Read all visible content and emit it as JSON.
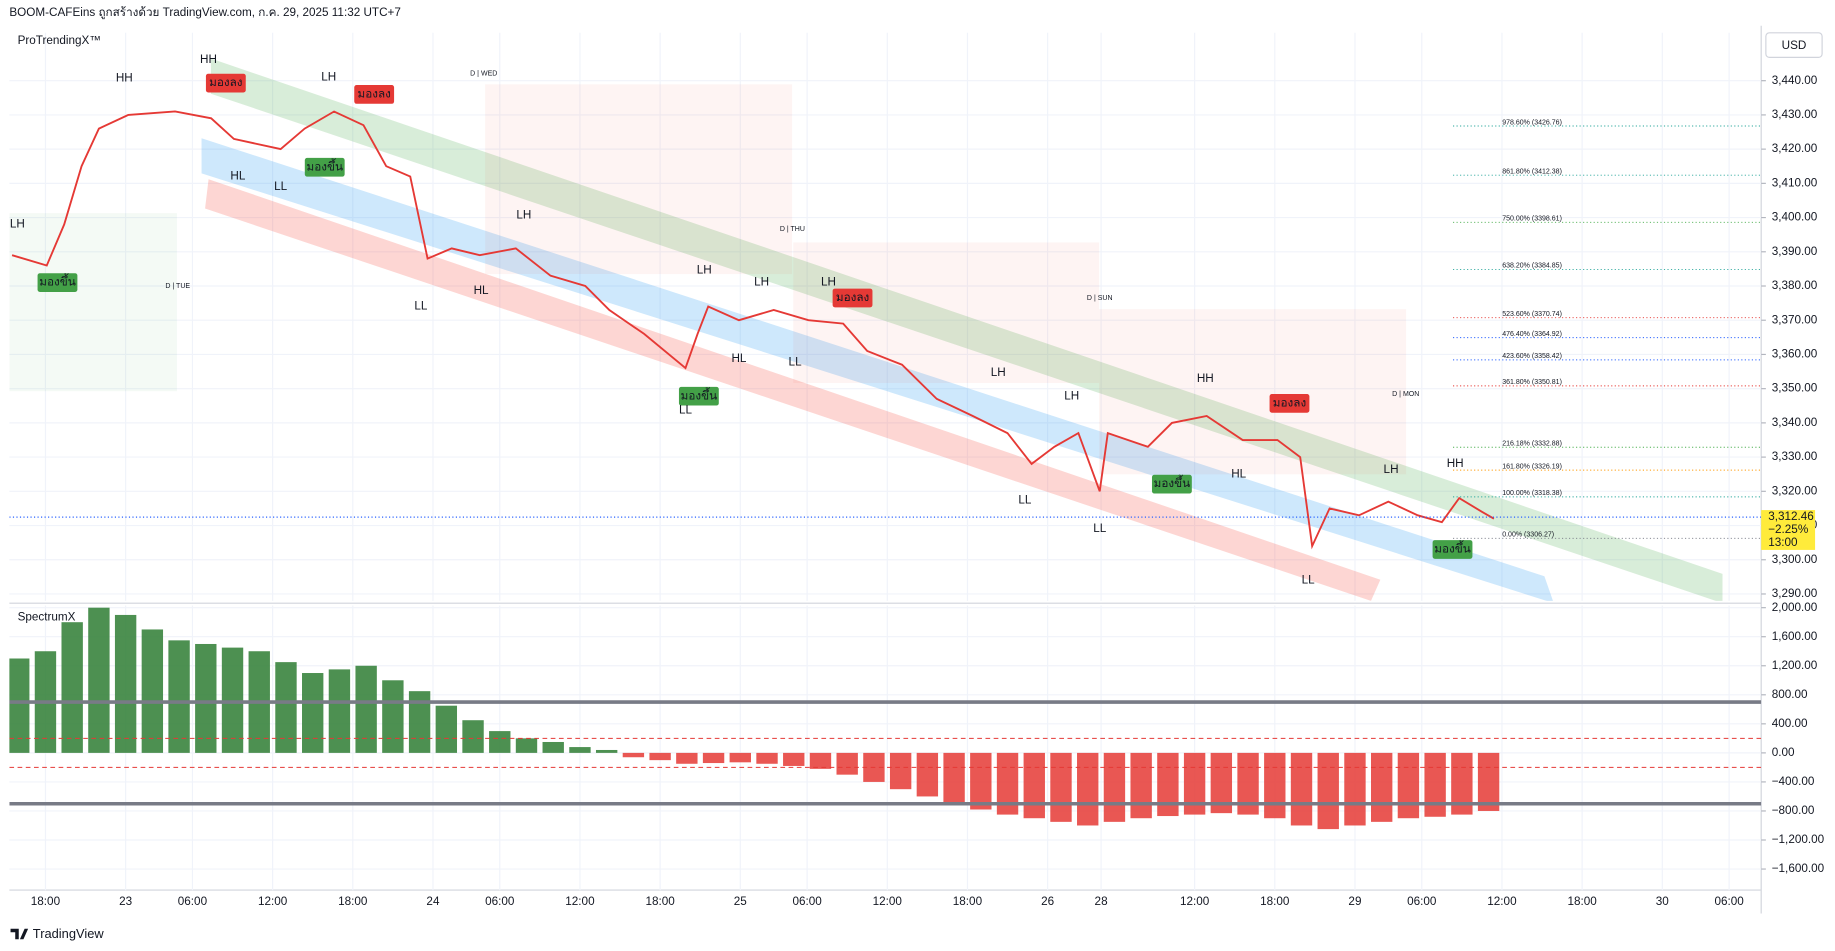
{
  "header": {
    "title": "BOOM-CAFEins ถูกสร้างด้วย TradingView.com, ก.ค. 29, 2025 11:32 UTC+7"
  },
  "footer": {
    "brand": "TradingView"
  },
  "chart_data": [
    {
      "type": "line",
      "title": "ProTrendingX™",
      "currency": "USD",
      "color": "#e53935",
      "grid": true,
      "x": [
        -2.5,
        0.1,
        1.4,
        2.7,
        4.0,
        6.2,
        9.7,
        12.4,
        14.1,
        17.6,
        19.4,
        21.6,
        23.8,
        25.5,
        27.3,
        28.6,
        30.4,
        32.5,
        35.2,
        37.8,
        40.4,
        42.2,
        44.8,
        47.9,
        48.8,
        49.6,
        51.9,
        54.5,
        57.1,
        59.7,
        61.5,
        64.1,
        66.7,
        69.4,
        72.0,
        73.8,
        75.5,
        77.3,
        78.9,
        79.5,
        82.5,
        84.3,
        86.9,
        89.6,
        92.2,
        93.9,
        94.8,
        96.1,
        98.3,
        100.5,
        102.7,
        104.5,
        105.8,
        107.5,
        108.4
      ],
      "values": [
        3389,
        3386,
        3398,
        3415,
        3426,
        3430,
        3431,
        3429,
        3423,
        3420,
        3426,
        3431,
        3427,
        3415,
        3412,
        3388,
        3391,
        3389,
        3391,
        3383,
        3380,
        3373,
        3366,
        3356,
        3366,
        3374,
        3370,
        3373,
        3370,
        3369,
        3361,
        3357,
        3347,
        3342,
        3337,
        3328,
        3333,
        3337,
        3320,
        3337,
        3333,
        3340,
        3342,
        3335,
        3335,
        3330,
        3304,
        3315,
        3313,
        3317,
        3313,
        3311,
        3318,
        3314,
        3312
      ],
      "xlim": [
        -2.7,
        128.4
      ],
      "xticks": [
        {
          "value": 0,
          "label": "18:00"
        },
        {
          "value": 6,
          "label": "23"
        },
        {
          "value": 11,
          "label": "06:00"
        },
        {
          "value": 17,
          "label": "12:00"
        },
        {
          "value": 23,
          "label": "18:00"
        },
        {
          "value": 29,
          "label": "24"
        },
        {
          "value": 34,
          "label": "06:00"
        },
        {
          "value": 40,
          "label": "12:00"
        },
        {
          "value": 46,
          "label": "18:00"
        },
        {
          "value": 52,
          "label": "25"
        },
        {
          "value": 57,
          "label": "06:00"
        },
        {
          "value": 63,
          "label": "12:00"
        },
        {
          "value": 69,
          "label": "18:00"
        },
        {
          "value": 75,
          "label": "26"
        },
        {
          "value": 79,
          "label": "28"
        },
        {
          "value": 86,
          "label": "12:00"
        },
        {
          "value": 92,
          "label": "18:00"
        },
        {
          "value": 98,
          "label": "29"
        },
        {
          "value": 103,
          "label": "06:00"
        },
        {
          "value": 109,
          "label": "12:00"
        },
        {
          "value": 115,
          "label": "18:00"
        },
        {
          "value": 121,
          "label": "30"
        },
        {
          "value": 126,
          "label": "06:00"
        }
      ],
      "ylim": [
        3288,
        3454
      ],
      "yticks": [
        {
          "value": 3290,
          "label": "3,290.00"
        },
        {
          "value": 3300,
          "label": "3,300.00"
        },
        {
          "value": 3310,
          "label": "3,310.00"
        },
        {
          "value": 3320,
          "label": "3,320.00"
        },
        {
          "value": 3330,
          "label": "3,330.00"
        },
        {
          "value": 3340,
          "label": "3,340.00"
        },
        {
          "value": 3350,
          "label": "3,350.00"
        },
        {
          "value": 3360,
          "label": "3,360.00"
        },
        {
          "value": 3370,
          "label": "3,370.00"
        },
        {
          "value": 3380,
          "label": "3,380.00"
        },
        {
          "value": 3390,
          "label": "3,390.00"
        },
        {
          "value": 3400,
          "label": "3,400.00"
        },
        {
          "value": 3410,
          "label": "3,410.00"
        },
        {
          "value": 3420,
          "label": "3,420.00"
        },
        {
          "value": 3430,
          "label": "3,430.00"
        },
        {
          "value": 3440,
          "label": "3,440.00"
        }
      ],
      "last_price": {
        "value": 3312.46,
        "label": "3,312.46"
      },
      "change": {
        "value": -2.25,
        "label": "−2.25%"
      },
      "countdown": "13:00",
      "fib_levels": [
        {
          "value": 3426.76,
          "label": "978.60% (3426.76)",
          "color": "#26a69a"
        },
        {
          "value": 3412.38,
          "label": "861.80% (3412.38)",
          "color": "#26a69a"
        },
        {
          "value": 3398.61,
          "label": "750.00% (3398.61)",
          "color": "#4caf50"
        },
        {
          "value": 3384.85,
          "label": "638.20% (3384.85)",
          "color": "#26a69a"
        },
        {
          "value": 3370.74,
          "label": "523.60% (3370.74)",
          "color": "#e53935"
        },
        {
          "value": 3364.92,
          "label": "476.40% (3364.92)",
          "color": "#2962ff"
        },
        {
          "value": 3358.42,
          "label": "423.60% (3358.42)",
          "color": "#2962ff"
        },
        {
          "value": 3350.81,
          "label": "361.80% (3350.81)",
          "color": "#e53935"
        },
        {
          "value": 3332.88,
          "label": "216.18% (3332.88)",
          "color": "#4caf50"
        },
        {
          "value": 3326.19,
          "label": "161.80% (3326.19)",
          "color": "#ff9800"
        },
        {
          "value": 3318.38,
          "label": "100.00% (3318.38)",
          "color": "#26a69a"
        },
        {
          "value": 3306.27,
          "label": "0.00% (3306.27)",
          "color": "#787b86"
        }
      ],
      "annotations": [
        {
          "text": "HH",
          "x": 5.9,
          "y": 3440.7,
          "color": "#787b86",
          "box": false
        },
        {
          "text": "HH",
          "x": 12.2,
          "y": 3446,
          "color": "#787b86",
          "box": false
        },
        {
          "text": "LH",
          "x": 21.2,
          "y": 3441,
          "color": "#e53935",
          "box": false
        },
        {
          "text": "มองลง",
          "x": 13.5,
          "y": 3439.3,
          "color": "#e53935",
          "box": true
        },
        {
          "text": "มองลง",
          "x": 24.6,
          "y": 3436,
          "color": "#e53935",
          "box": true
        },
        {
          "text": "มองขึ้น",
          "x": 20.9,
          "y": 3414.7,
          "color": "#43a047",
          "box": true
        },
        {
          "text": "มองขึ้น",
          "x": 0.9,
          "y": 3381,
          "color": "#43a047",
          "box": true
        },
        {
          "text": "HL",
          "x": 14.4,
          "y": 3412,
          "color": "#2962ff",
          "box": false
        },
        {
          "text": "LL",
          "x": 17.6,
          "y": 3409,
          "color": "#787b86",
          "box": false
        },
        {
          "text": "LH",
          "x": -2.1,
          "y": 3398,
          "color": "#e53935",
          "box": false
        },
        {
          "text": "LL",
          "x": 28.1,
          "y": 3374,
          "color": "#787b86",
          "box": false
        },
        {
          "text": "LH",
          "x": 35.8,
          "y": 3400.7,
          "color": "#e53935",
          "box": false
        },
        {
          "text": "HL",
          "x": 32.6,
          "y": 3378.5,
          "color": "#2962ff",
          "box": false
        },
        {
          "text": "LH",
          "x": 49.3,
          "y": 3384.6,
          "color": "#e53935",
          "box": false
        },
        {
          "text": "LH",
          "x": 53.6,
          "y": 3381,
          "color": "#e53935",
          "box": false
        },
        {
          "text": "LH",
          "x": 58.6,
          "y": 3381,
          "color": "#e53935",
          "box": false
        },
        {
          "text": "มองลง",
          "x": 60.4,
          "y": 3376.5,
          "color": "#e53935",
          "box": true
        },
        {
          "text": "HL",
          "x": 51.9,
          "y": 3358.7,
          "color": "#2962ff",
          "box": false
        },
        {
          "text": "LL",
          "x": 56.1,
          "y": 3357.7,
          "color": "#787b86",
          "box": false
        },
        {
          "text": "มองขึ้น",
          "x": 48.9,
          "y": 3347.8,
          "color": "#43a047",
          "box": true
        },
        {
          "text": "LL",
          "x": 47.9,
          "y": 3343.7,
          "color": "#787b86",
          "box": false
        },
        {
          "text": "LH",
          "x": 71.3,
          "y": 3354.6,
          "color": "#e53935",
          "box": false
        },
        {
          "text": "LH",
          "x": 76.8,
          "y": 3347.8,
          "color": "#e53935",
          "box": false
        },
        {
          "text": "LL",
          "x": 73.3,
          "y": 3317.4,
          "color": "#787b86",
          "box": false
        },
        {
          "text": "LL",
          "x": 78.9,
          "y": 3309,
          "color": "#787b86",
          "box": false
        },
        {
          "text": "HH",
          "x": 86.8,
          "y": 3352.9,
          "color": "#787b86",
          "box": false
        },
        {
          "text": "มองลง",
          "x": 93.1,
          "y": 3345.7,
          "color": "#e53935",
          "box": true
        },
        {
          "text": "มองขึ้น",
          "x": 84.3,
          "y": 3322.1,
          "color": "#43a047",
          "box": true
        },
        {
          "text": "HL",
          "x": 89.3,
          "y": 3324.9,
          "color": "#2962ff",
          "box": false
        },
        {
          "text": "LL",
          "x": 94.5,
          "y": 3294,
          "color": "#787b86",
          "box": false
        },
        {
          "text": "LH",
          "x": 100.7,
          "y": 3326.2,
          "color": "#e53935",
          "box": false
        },
        {
          "text": "HH",
          "x": 105.5,
          "y": 3328,
          "color": "#787b86",
          "box": false
        },
        {
          "text": "มองขึ้น",
          "x": 105.3,
          "y": 3303,
          "color": "#43a047",
          "box": true
        },
        {
          "text": "D | TUE",
          "x": 9.9,
          "y": 3380,
          "color": "#131722",
          "box": false
        },
        {
          "text": "D | WED",
          "x": 32.8,
          "y": 3442,
          "color": "#131722",
          "box": false
        },
        {
          "text": "D | THU",
          "x": 55.9,
          "y": 3396.6,
          "color": "#131722",
          "box": false
        },
        {
          "text": "D | SUN",
          "x": 78.9,
          "y": 3376.5,
          "color": "#131722",
          "box": false
        },
        {
          "text": "D | MON",
          "x": 101.8,
          "y": 3348.4,
          "color": "#131722",
          "box": false
        }
      ]
    },
    {
      "type": "bar",
      "title": "SpectrumX",
      "grid": true,
      "up_color": "#2e7d32",
      "down_color": "#e53935",
      "x": [
        -2,
        0,
        2,
        4,
        6,
        8,
        10,
        12,
        14,
        16,
        18,
        20,
        22,
        24,
        26,
        28,
        30,
        32,
        34,
        36,
        38,
        40,
        42,
        44,
        46,
        48,
        50,
        52,
        54,
        56,
        58,
        60,
        62,
        64,
        66,
        68,
        70,
        72,
        74,
        76,
        78,
        80,
        82,
        84,
        86,
        88,
        90,
        92,
        94,
        96,
        98,
        100,
        102,
        104,
        106,
        108
      ],
      "values": [
        1300,
        1400,
        1800,
        2000,
        1900,
        1700,
        1550,
        1500,
        1450,
        1400,
        1250,
        1100,
        1150,
        1200,
        1000,
        850,
        650,
        450,
        300,
        200,
        150,
        80,
        40,
        -60,
        -100,
        -150,
        -140,
        -130,
        -150,
        -180,
        -220,
        -300,
        -400,
        -500,
        -600,
        -700,
        -780,
        -850,
        -900,
        -950,
        -1000,
        -950,
        -900,
        -870,
        -850,
        -830,
        -850,
        -900,
        -1000,
        -1050,
        -1000,
        -950,
        -900,
        -880,
        -850,
        -800
      ],
      "xlim": [
        -2.7,
        128.4
      ],
      "ylim": [
        -1890,
        2030
      ],
      "yticks": [
        {
          "value": 2000,
          "label": "2,000.00"
        },
        {
          "value": 1600,
          "label": "1,600.00"
        },
        {
          "value": 1200,
          "label": "1,200.00"
        },
        {
          "value": 800,
          "label": "800.00"
        },
        {
          "value": 400,
          "label": "400.00"
        },
        {
          "value": 0,
          "label": "0.00"
        },
        {
          "value": -400,
          "label": "−400.00"
        },
        {
          "value": -800,
          "label": "−800.00"
        },
        {
          "value": -1200,
          "label": "−1,200.00"
        },
        {
          "value": -1600,
          "label": "−1,600.00"
        }
      ],
      "levels": [
        {
          "value": 700,
          "color": "#787b86",
          "dashed": false
        },
        {
          "value": -700,
          "color": "#787b86",
          "dashed": false
        },
        {
          "value": 200,
          "color": "#e53935",
          "dashed": true
        },
        {
          "value": -200,
          "color": "#e53935",
          "dashed": true
        }
      ]
    }
  ]
}
